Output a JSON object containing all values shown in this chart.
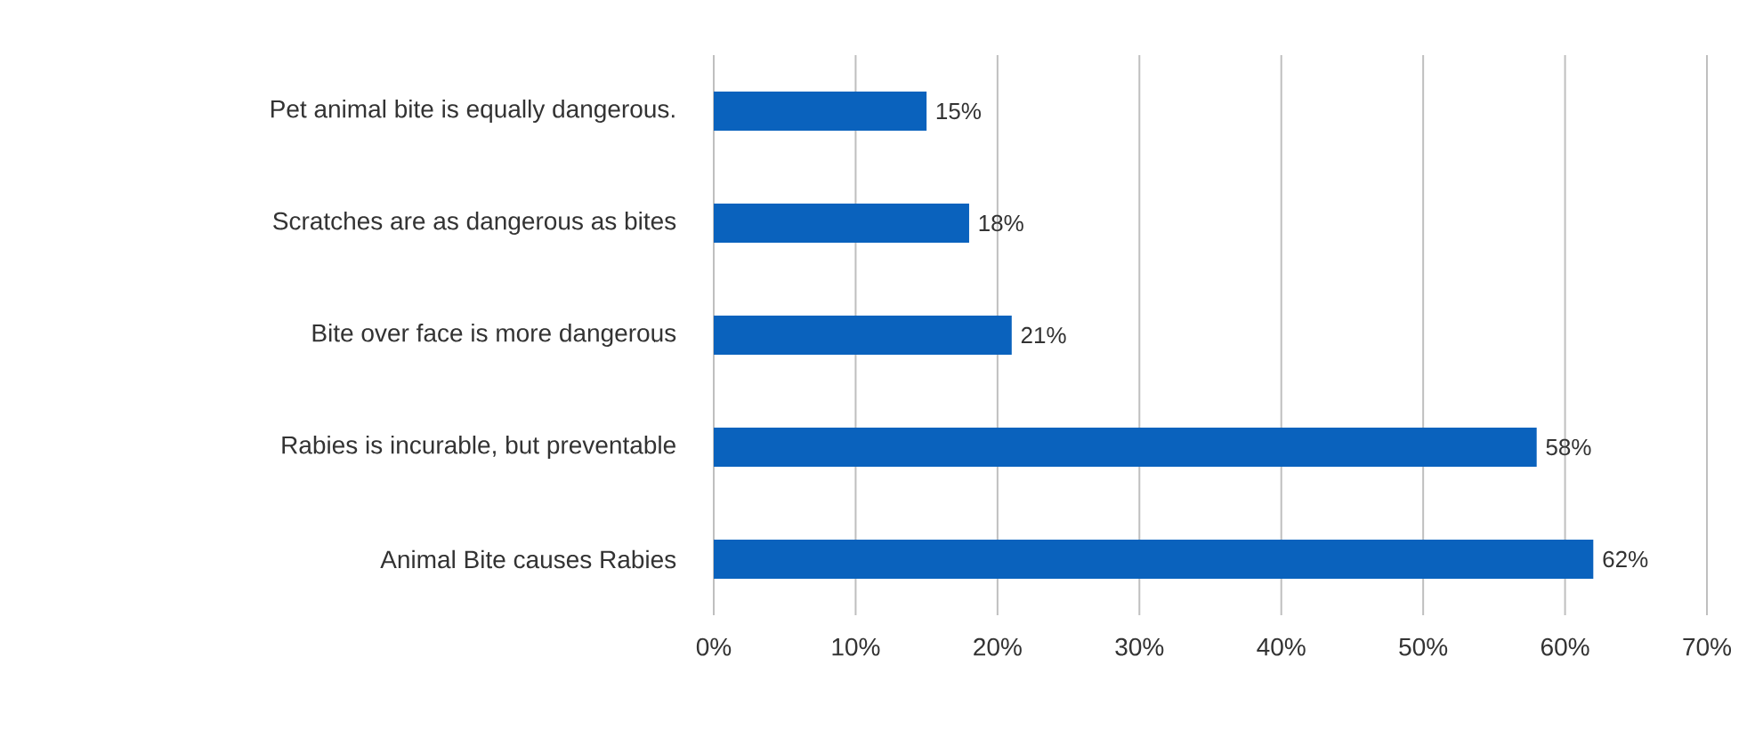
{
  "chart_data": {
    "type": "bar",
    "orientation": "horizontal",
    "categories": [
      "Pet animal bite is equally dangerous.",
      "Scratches are as dangerous as bites",
      "Bite over face is more dangerous",
      "Rabies is incurable, but preventable",
      "Animal Bite causes Rabies"
    ],
    "values": [
      15,
      18,
      21,
      58,
      62
    ],
    "value_labels": [
      "15%",
      "18%",
      "21%",
      "58%",
      "62%"
    ],
    "color": "#0a62bd",
    "xlim": [
      0,
      70
    ],
    "xticks": [
      {
        "value": 0,
        "label": "0%"
      },
      {
        "value": 10,
        "label": "10%"
      },
      {
        "value": 20,
        "label": "20%"
      },
      {
        "value": 30,
        "label": "30%"
      },
      {
        "value": 40,
        "label": "40%"
      },
      {
        "value": 50,
        "label": "50%"
      },
      {
        "value": 60,
        "label": "60%"
      },
      {
        "value": 70,
        "label": "70%"
      }
    ],
    "grid": "x"
  }
}
